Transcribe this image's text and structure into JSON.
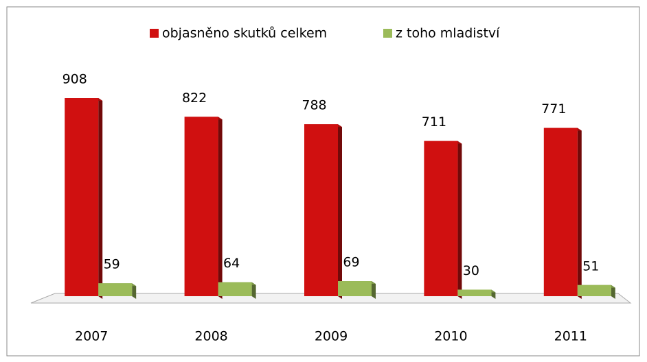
{
  "chart_data": {
    "type": "bar",
    "categories": [
      "2007",
      "2008",
      "2009",
      "2010",
      "2011"
    ],
    "series": [
      {
        "name": "objasněno skutků celkem",
        "color": "#d01010",
        "values": [
          908,
          822,
          788,
          711,
          771
        ]
      },
      {
        "name": "z toho mladiství",
        "color": "#9bbb59",
        "values": [
          59,
          64,
          69,
          30,
          51
        ]
      }
    ],
    "legend": "top"
  }
}
